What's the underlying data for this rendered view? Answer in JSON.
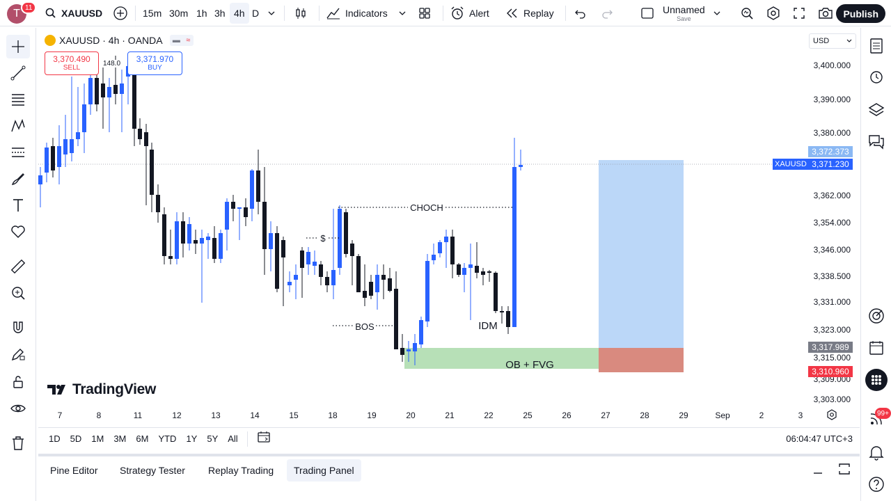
{
  "topbar": {
    "avatar_letter": "T",
    "notifications": "11",
    "symbol": "XAUUSD",
    "timeframes": [
      "15m",
      "30m",
      "1h",
      "3h",
      "4h",
      "D"
    ],
    "active_timeframe": "4h",
    "indicators_label": "Indicators",
    "alert_label": "Alert",
    "replay_label": "Replay",
    "layout_name": "Unnamed",
    "layout_save": "Save",
    "publish_label": "Publish"
  },
  "legend": {
    "title": "XAUUSD · 4h · OANDA",
    "sell_price": "3,370.490",
    "sell_label": "SELL",
    "buy_price": "3,371.970",
    "buy_label": "BUY",
    "spread": "148.0"
  },
  "price_axis": {
    "currency": "USD",
    "labels": [
      "3,400.000",
      "3,390.000",
      "3,380.000",
      "3,362.000",
      "3,354.000",
      "3,346.000",
      "3,338.500",
      "3,331.000",
      "3,323.000",
      "3,315.000",
      "3,309.000",
      "3,303.000"
    ],
    "tags": {
      "target": "3,372.373",
      "last": "3,371.230",
      "entry": "3,317.989",
      "stop": "3,310.960"
    },
    "symbol_tag": "XAUUSD"
  },
  "annotations": {
    "choch": "CHOCH",
    "bos": "BOS",
    "dollar": "$",
    "idm": "IDM",
    "ob_fvg": "OB + FVG"
  },
  "time_axis": {
    "labels": [
      "7",
      "8",
      "11",
      "12",
      "13",
      "14",
      "15",
      "18",
      "19",
      "20",
      "21",
      "22",
      "25",
      "26",
      "27",
      "28",
      "29",
      "Sep",
      "2",
      "3"
    ]
  },
  "range_bar": {
    "ranges": [
      "1D",
      "5D",
      "1M",
      "3M",
      "6M",
      "YTD",
      "1Y",
      "5Y",
      "All"
    ],
    "clock": "06:04:47 UTC+3"
  },
  "bottom_tabs": [
    "Pine Editor",
    "Strategy Tester",
    "Replay Trading",
    "Trading Panel"
  ],
  "brand": "TradingView",
  "right_badge": "99+",
  "colors": {
    "up": "#2962ff",
    "down": "#131722",
    "accent": "#2962ff",
    "target_zone": "#bbd7f8",
    "stop_zone": "#d98a7f",
    "ob_zone": "#b7e0b7"
  }
}
